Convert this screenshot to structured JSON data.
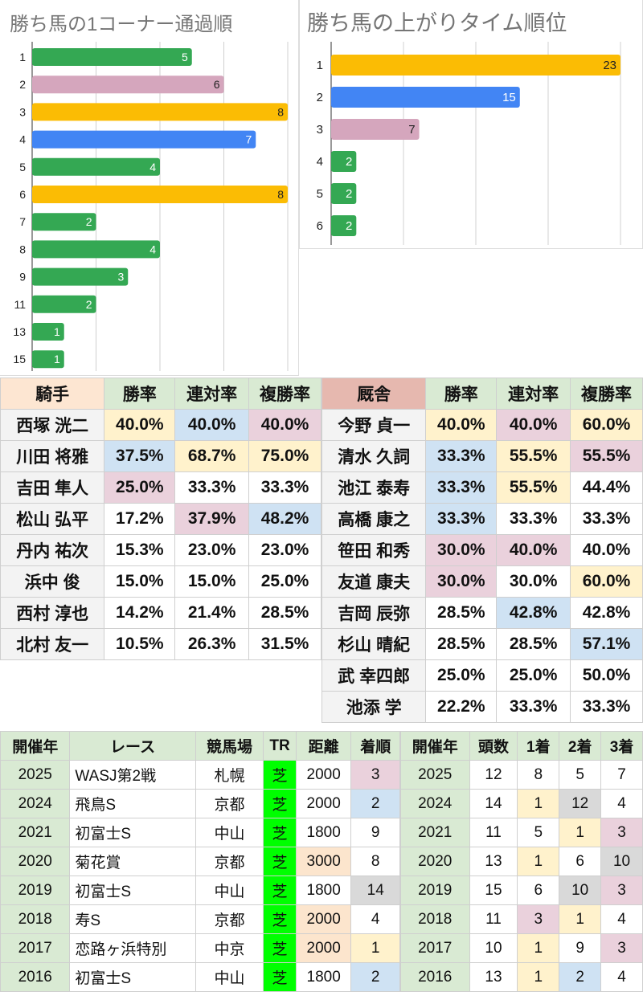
{
  "colors": {
    "green": "#34a853",
    "pink": "#d5a6bd",
    "yellow": "#fbbc04",
    "blue": "#4285f4",
    "peach": "#fde6d2",
    "rose": "#e6b8af",
    "lightgreen": "#d9ead3",
    "cellpink": "#ead1dc",
    "cellblue": "#cfe2f3",
    "cellyellow": "#fff2cc",
    "cellgray": "#d9d9d9",
    "cellorange": "#fce5cd",
    "turf": "#00ff00"
  },
  "chart_data": [
    {
      "type": "bar",
      "title": "勝ち馬の1コーナー通過順",
      "categories": [
        "1",
        "2",
        "3",
        "4",
        "5",
        "6",
        "7",
        "8",
        "9",
        "11",
        "13",
        "15"
      ],
      "values": [
        5,
        6,
        8,
        7,
        4,
        8,
        2,
        4,
        3,
        2,
        1,
        1
      ],
      "bar_colors": [
        "green",
        "pink",
        "yellow",
        "blue",
        "green",
        "yellow",
        "green",
        "green",
        "green",
        "green",
        "green",
        "green"
      ],
      "xlim": [
        0,
        8
      ],
      "grid": true
    },
    {
      "type": "bar",
      "title": "勝ち馬の上がりタイム順位",
      "categories": [
        "1",
        "2",
        "3",
        "4",
        "5",
        "6"
      ],
      "values": [
        23,
        15,
        7,
        2,
        2,
        2
      ],
      "bar_colors": [
        "yellow",
        "blue",
        "pink",
        "green",
        "green",
        "green"
      ],
      "xlim": [
        0,
        23
      ],
      "grid": true
    }
  ],
  "jockey_table": {
    "headers": [
      "騎手",
      "勝率",
      "連対率",
      "複勝率"
    ],
    "rows": [
      {
        "name": "西塚 洸二",
        "v": [
          "40.0%",
          "40.0%",
          "40.0%"
        ],
        "c": [
          "cellyellow",
          "cellblue",
          "cellpink"
        ]
      },
      {
        "name": "川田 将雅",
        "v": [
          "37.5%",
          "68.7%",
          "75.0%"
        ],
        "c": [
          "cellblue",
          "cellyellow",
          "cellyellow"
        ]
      },
      {
        "name": "吉田 隼人",
        "v": [
          "25.0%",
          "33.3%",
          "33.3%"
        ],
        "c": [
          "cellpink",
          "",
          ""
        ]
      },
      {
        "name": "松山 弘平",
        "v": [
          "17.2%",
          "37.9%",
          "48.2%"
        ],
        "c": [
          "",
          "cellpink",
          "cellblue"
        ]
      },
      {
        "name": "丹内 祐次",
        "v": [
          "15.3%",
          "23.0%",
          "23.0%"
        ],
        "c": [
          "",
          "",
          ""
        ]
      },
      {
        "name": "浜中 俊",
        "v": [
          "15.0%",
          "15.0%",
          "25.0%"
        ],
        "c": [
          "",
          "",
          ""
        ]
      },
      {
        "name": "西村 淳也",
        "v": [
          "14.2%",
          "21.4%",
          "28.5%"
        ],
        "c": [
          "",
          "",
          ""
        ]
      },
      {
        "name": "北村 友一",
        "v": [
          "10.5%",
          "26.3%",
          "31.5%"
        ],
        "c": [
          "",
          "",
          ""
        ]
      }
    ]
  },
  "trainer_table": {
    "headers": [
      "厩舎",
      "勝率",
      "連対率",
      "複勝率"
    ],
    "rows": [
      {
        "name": "今野 貞一",
        "v": [
          "40.0%",
          "40.0%",
          "60.0%"
        ],
        "c": [
          "cellyellow",
          "cellpink",
          "cellyellow"
        ]
      },
      {
        "name": "清水 久詞",
        "v": [
          "33.3%",
          "55.5%",
          "55.5%"
        ],
        "c": [
          "cellblue",
          "cellyellow",
          "cellpink"
        ]
      },
      {
        "name": "池江 泰寿",
        "v": [
          "33.3%",
          "55.5%",
          "44.4%"
        ],
        "c": [
          "cellblue",
          "cellyellow",
          ""
        ]
      },
      {
        "name": "高橋 康之",
        "v": [
          "33.3%",
          "33.3%",
          "33.3%"
        ],
        "c": [
          "cellblue",
          "",
          ""
        ]
      },
      {
        "name": "笹田 和秀",
        "v": [
          "30.0%",
          "40.0%",
          "40.0%"
        ],
        "c": [
          "cellpink",
          "cellpink",
          ""
        ]
      },
      {
        "name": "友道 康夫",
        "v": [
          "30.0%",
          "30.0%",
          "60.0%"
        ],
        "c": [
          "cellpink",
          "",
          "cellyellow"
        ]
      },
      {
        "name": "吉岡 辰弥",
        "v": [
          "28.5%",
          "42.8%",
          "42.8%"
        ],
        "c": [
          "",
          "cellblue",
          ""
        ]
      },
      {
        "name": "杉山 晴紀",
        "v": [
          "28.5%",
          "28.5%",
          "57.1%"
        ],
        "c": [
          "",
          "",
          "cellblue"
        ]
      },
      {
        "name": "武 幸四郎",
        "v": [
          "25.0%",
          "25.0%",
          "50.0%"
        ],
        "c": [
          "",
          "",
          ""
        ]
      },
      {
        "name": "池添 学",
        "v": [
          "22.2%",
          "33.3%",
          "33.3%"
        ],
        "c": [
          "",
          "",
          ""
        ]
      }
    ]
  },
  "race_table": {
    "headers": [
      "開催年",
      "レース",
      "競馬場",
      "TR",
      "距離",
      "着順"
    ],
    "rows": [
      {
        "year": "2025",
        "race": "WASJ第2戦",
        "course": "札幌",
        "tr": "芝",
        "dist": "2000",
        "pos": "3",
        "dc": "",
        "pc": "cellpink"
      },
      {
        "year": "2024",
        "race": "飛鳥S",
        "course": "京都",
        "tr": "芝",
        "dist": "2000",
        "pos": "2",
        "dc": "",
        "pc": "cellblue"
      },
      {
        "year": "2021",
        "race": "初富士S",
        "course": "中山",
        "tr": "芝",
        "dist": "1800",
        "pos": "9",
        "dc": "",
        "pc": ""
      },
      {
        "year": "2020",
        "race": "菊花賞",
        "course": "京都",
        "tr": "芝",
        "dist": "3000",
        "pos": "8",
        "dc": "cellorange",
        "pc": ""
      },
      {
        "year": "2019",
        "race": "初富士S",
        "course": "中山",
        "tr": "芝",
        "dist": "1800",
        "pos": "14",
        "dc": "",
        "pc": "cellgray"
      },
      {
        "year": "2018",
        "race": "寿S",
        "course": "京都",
        "tr": "芝",
        "dist": "2000",
        "pos": "4",
        "dc": "cellorange",
        "pc": ""
      },
      {
        "year": "2017",
        "race": "恋路ヶ浜特別",
        "course": "中京",
        "tr": "芝",
        "dist": "2000",
        "pos": "1",
        "dc": "cellorange",
        "pc": "cellyellow"
      },
      {
        "year": "2016",
        "race": "初富士S",
        "course": "中山",
        "tr": "芝",
        "dist": "1800",
        "pos": "2",
        "dc": "",
        "pc": "cellblue"
      }
    ]
  },
  "field_table": {
    "headers": [
      "開催年",
      "頭数",
      "1着",
      "2着",
      "3着"
    ],
    "rows": [
      {
        "year": "2025",
        "n": "12",
        "a": "8",
        "b": "5",
        "c": "7",
        "ac": "",
        "bc": "",
        "cc": ""
      },
      {
        "year": "2024",
        "n": "14",
        "a": "1",
        "b": "12",
        "c": "4",
        "ac": "cellyellow",
        "bc": "cellgray",
        "cc": ""
      },
      {
        "year": "2021",
        "n": "11",
        "a": "5",
        "b": "1",
        "c": "3",
        "ac": "",
        "bc": "cellyellow",
        "cc": "cellpink"
      },
      {
        "year": "2020",
        "n": "13",
        "a": "1",
        "b": "6",
        "c": "10",
        "ac": "cellyellow",
        "bc": "",
        "cc": "cellgray"
      },
      {
        "year": "2019",
        "n": "15",
        "a": "6",
        "b": "10",
        "c": "3",
        "ac": "",
        "bc": "cellgray",
        "cc": "cellpink"
      },
      {
        "year": "2018",
        "n": "11",
        "a": "3",
        "b": "1",
        "c": "4",
        "ac": "cellpink",
        "bc": "cellyellow",
        "cc": ""
      },
      {
        "year": "2017",
        "n": "10",
        "a": "1",
        "b": "9",
        "c": "3",
        "ac": "cellyellow",
        "bc": "",
        "cc": "cellpink"
      },
      {
        "year": "2016",
        "n": "13",
        "a": "1",
        "b": "2",
        "c": "4",
        "ac": "cellyellow",
        "bc": "cellblue",
        "cc": ""
      }
    ]
  }
}
